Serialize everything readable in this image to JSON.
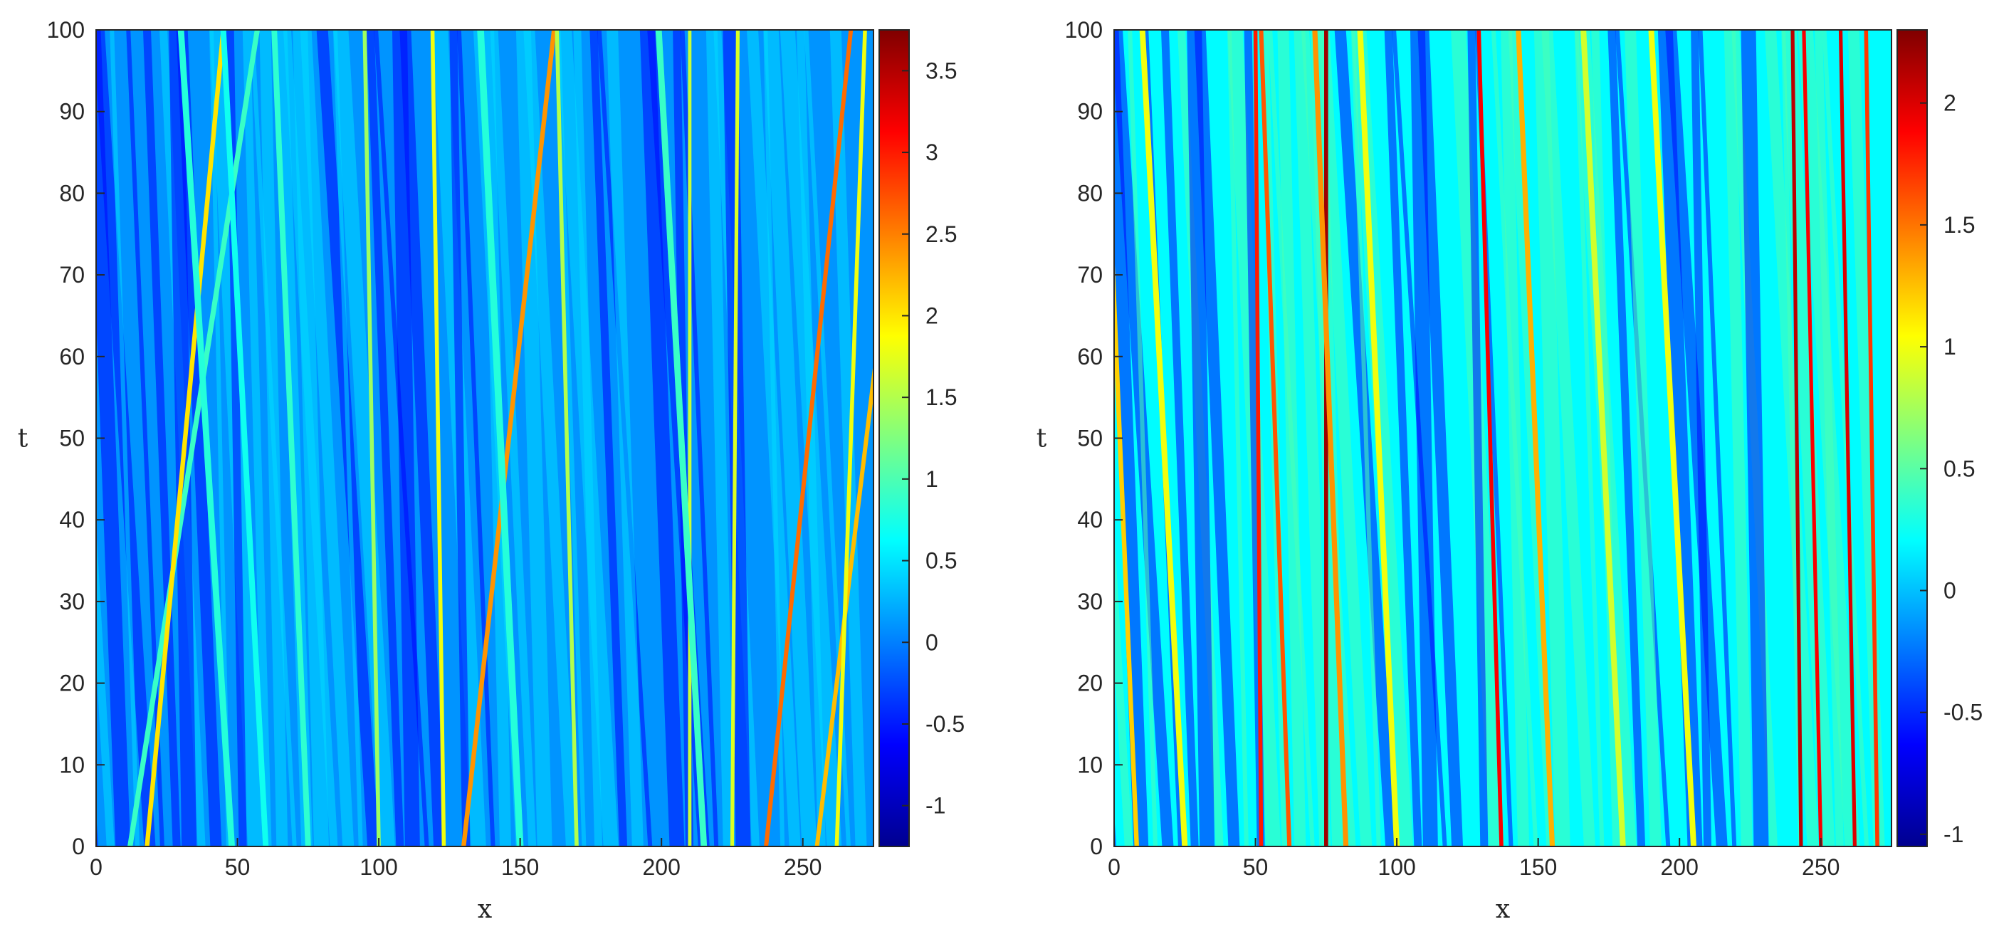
{
  "chart_data": [
    {
      "type": "heatmap",
      "title": "",
      "xlabel": "x",
      "ylabel": "t",
      "xlim": [
        0,
        275
      ],
      "ylim": [
        0,
        100
      ],
      "x_ticks": [
        "0",
        "50",
        "100",
        "150",
        "200",
        "250"
      ],
      "y_ticks": [
        "0",
        "10",
        "20",
        "30",
        "40",
        "50",
        "60",
        "70",
        "80",
        "90",
        "100"
      ],
      "colormap": "jet",
      "color_range": [
        -1.25,
        3.75
      ],
      "colorbar_ticks": [
        "-1",
        "-0.5",
        "0",
        "0.5",
        "1",
        "1.5",
        "2",
        "2.5",
        "3",
        "3.5"
      ],
      "background_level": 0.1,
      "bands": [
        {
          "x0": 12,
          "t0": 0,
          "slope": 0.45,
          "level": 0.9,
          "w": 1.8
        },
        {
          "x0": 18,
          "t0": 0,
          "slope": 0.27,
          "level": 2.0,
          "w": 1.6
        },
        {
          "x0": 48,
          "t0": 0,
          "slope": -0.18,
          "level": 0.8,
          "w": 2.2
        },
        {
          "x0": 60,
          "t0": 0,
          "slope": -0.15,
          "level": 0.7,
          "w": 2.0
        },
        {
          "x0": 75,
          "t0": 0,
          "slope": -0.12,
          "level": 0.85,
          "w": 2.0
        },
        {
          "x0": 100,
          "t0": 0,
          "slope": -0.05,
          "level": 1.4,
          "w": 1.4
        },
        {
          "x0": 123,
          "t0": 0,
          "slope": -0.04,
          "level": 1.8,
          "w": 1.4
        },
        {
          "x0": 130,
          "t0": 0,
          "slope": 0.32,
          "level": 2.4,
          "w": 1.6
        },
        {
          "x0": 150,
          "t0": 0,
          "slope": -0.14,
          "level": 0.8,
          "w": 2.4
        },
        {
          "x0": 170,
          "t0": 0,
          "slope": -0.07,
          "level": 1.5,
          "w": 1.4
        },
        {
          "x0": 210,
          "t0": 0,
          "slope": 0.0,
          "level": 1.6,
          "w": 1.2
        },
        {
          "x0": 215,
          "t0": 0,
          "slope": -0.16,
          "level": 0.9,
          "w": 2.2
        },
        {
          "x0": 225,
          "t0": 0,
          "slope": 0.02,
          "level": 1.7,
          "w": 1.3
        },
        {
          "x0": 237,
          "t0": 0,
          "slope": 0.3,
          "level": 2.6,
          "w": 1.5
        },
        {
          "x0": 255,
          "t0": 0,
          "slope": 0.35,
          "level": 2.2,
          "w": 1.5
        },
        {
          "x0": 262,
          "t0": 0,
          "slope": 0.1,
          "level": 1.8,
          "w": 1.4
        }
      ]
    },
    {
      "type": "heatmap",
      "title": "",
      "xlabel": "x",
      "ylabel": "t",
      "xlim": [
        0,
        275
      ],
      "ylim": [
        0,
        100
      ],
      "x_ticks": [
        "0",
        "50",
        "100",
        "150",
        "200",
        "250"
      ],
      "y_ticks": [
        "0",
        "10",
        "20",
        "30",
        "40",
        "50",
        "60",
        "70",
        "80",
        "90",
        "100"
      ],
      "colormap": "jet",
      "color_range": [
        -1.05,
        2.3
      ],
      "colorbar_ticks": [
        "-1",
        "-0.5",
        "0",
        "0.5",
        "1",
        "1.5",
        "2"
      ],
      "background_level": 0.2,
      "bands": [
        {
          "x0": 8,
          "t0": 0,
          "slope": -0.12,
          "level": 1.2,
          "w": 1.6
        },
        {
          "x0": 25,
          "t0": 0,
          "slope": -0.15,
          "level": 1.0,
          "w": 2.0
        },
        {
          "x0": 52,
          "t0": 0,
          "slope": -0.02,
          "level": 1.8,
          "w": 1.4
        },
        {
          "x0": 62,
          "t0": 0,
          "slope": -0.1,
          "level": 1.6,
          "w": 1.5
        },
        {
          "x0": 75,
          "t0": 0,
          "slope": 0.0,
          "level": 2.2,
          "w": 1.4
        },
        {
          "x0": 82,
          "t0": 0,
          "slope": -0.11,
          "level": 1.4,
          "w": 1.8
        },
        {
          "x0": 100,
          "t0": 0,
          "slope": -0.13,
          "level": 1.0,
          "w": 2.0
        },
        {
          "x0": 137,
          "t0": 0,
          "slope": -0.08,
          "level": 1.9,
          "w": 1.4
        },
        {
          "x0": 155,
          "t0": 0,
          "slope": -0.12,
          "level": 1.3,
          "w": 1.8
        },
        {
          "x0": 180,
          "t0": 0,
          "slope": -0.14,
          "level": 0.9,
          "w": 2.0
        },
        {
          "x0": 205,
          "t0": 0,
          "slope": -0.15,
          "level": 1.0,
          "w": 2.0
        },
        {
          "x0": 243,
          "t0": 0,
          "slope": -0.03,
          "level": 2.1,
          "w": 1.3
        },
        {
          "x0": 250,
          "t0": 0,
          "slope": -0.06,
          "level": 1.9,
          "w": 1.3
        },
        {
          "x0": 262,
          "t0": 0,
          "slope": -0.05,
          "level": 2.0,
          "w": 1.3
        },
        {
          "x0": 270,
          "t0": 0,
          "slope": -0.04,
          "level": 1.7,
          "w": 1.4
        }
      ]
    }
  ]
}
